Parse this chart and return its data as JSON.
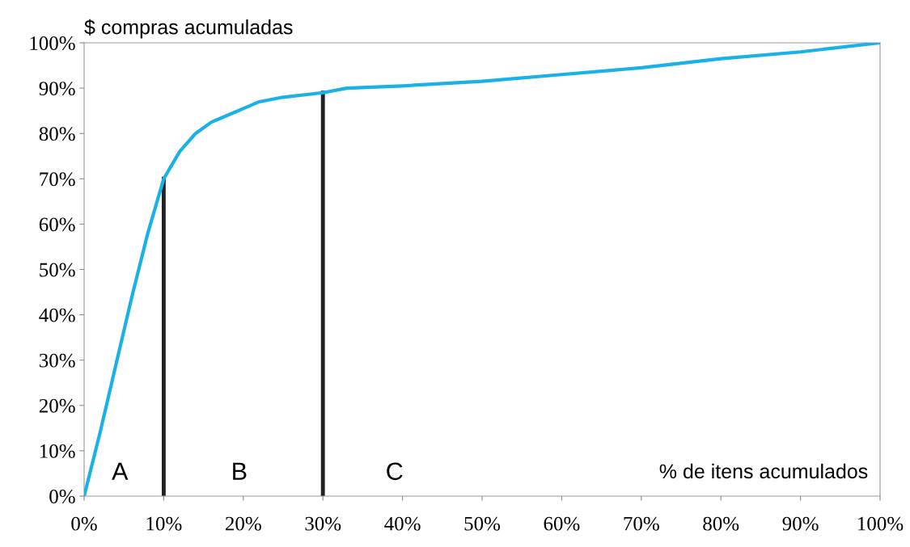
{
  "chart_data": {
    "type": "line",
    "ylabel": "$ compras acumuladas",
    "xlabel": "% de itens acumulados",
    "xlim": [
      0,
      100
    ],
    "ylim": [
      0,
      100
    ],
    "xticks": [
      {
        "value": 0,
        "label": "0%"
      },
      {
        "value": 10,
        "label": "10%"
      },
      {
        "value": 20,
        "label": "20%"
      },
      {
        "value": 30,
        "label": "30%"
      },
      {
        "value": 40,
        "label": "40%"
      },
      {
        "value": 50,
        "label": "50%"
      },
      {
        "value": 60,
        "label": "60%"
      },
      {
        "value": 70,
        "label": "70%"
      },
      {
        "value": 80,
        "label": "80%"
      },
      {
        "value": 90,
        "label": "90%"
      },
      {
        "value": 100,
        "label": "100%"
      }
    ],
    "yticks": [
      {
        "value": 0,
        "label": "0%"
      },
      {
        "value": 10,
        "label": "10%"
      },
      {
        "value": 20,
        "label": "20%"
      },
      {
        "value": 30,
        "label": "30%"
      },
      {
        "value": 40,
        "label": "40%"
      },
      {
        "value": 50,
        "label": "50%"
      },
      {
        "value": 60,
        "label": "60%"
      },
      {
        "value": 70,
        "label": "70%"
      },
      {
        "value": 80,
        "label": "80%"
      },
      {
        "value": 90,
        "label": "90%"
      },
      {
        "value": 100,
        "label": "100%"
      }
    ],
    "series": [
      {
        "color": "#1ab0e8",
        "x": [
          0,
          2,
          4,
          6,
          8,
          10,
          12,
          14,
          16,
          18,
          20,
          22,
          25,
          30,
          33,
          40,
          50,
          60,
          70,
          80,
          90,
          100
        ],
        "values": [
          0,
          14,
          29,
          44,
          58,
          70,
          76,
          80,
          82.5,
          84,
          85.5,
          87,
          88,
          89,
          90,
          90.5,
          91.5,
          93,
          94.5,
          96.5,
          98,
          100
        ]
      }
    ],
    "ref_lines": [
      {
        "axis": "x",
        "value": 10,
        "color": "#222222"
      },
      {
        "axis": "x",
        "value": 30,
        "color": "#222222"
      }
    ],
    "annotations": [
      "A",
      "B",
      "C"
    ],
    "grid": false,
    "legend": false,
    "marker": "none",
    "line_style": "solid"
  }
}
